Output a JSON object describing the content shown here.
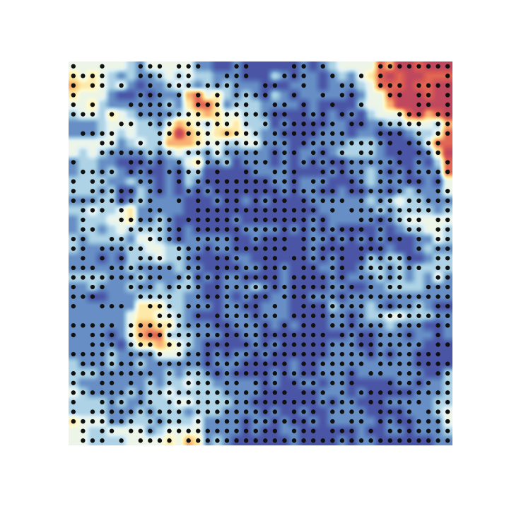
{
  "chart_data": {
    "type": "heatmap",
    "title": "",
    "xlabel": "",
    "ylabel": "",
    "grid": false,
    "axes_visible": false,
    "colormap": "RdYlBu_r",
    "colormap_stops": [
      "#4a55a6",
      "#5f86c1",
      "#9cc7df",
      "#dff1f7",
      "#fefbd2",
      "#fddb8c",
      "#f6a06a",
      "#de5d52",
      "#c0485e"
    ],
    "grid_size": [
      40,
      40
    ],
    "rows": [
      "3333332133333110010000001012333365776777",
      "4343212112323221110002101101213467677666",
      "5443231011232121211100011101112366676677",
      "4333100101115634212102101111101336777677",
      "3342111111214664122211110100002335778777",
      "2332432111123454332210000101010233367567",
      "1112333221354324342220100001100112233325",
      "1112323222475434543211000011101100012236",
      "3333312322555433223311100111122210001366",
      "3232111121232213111110101101222210000147",
      "1221100010113411201110101010011111001026",
      "1221210100102200000111100001011210101116",
      "2222112110102100000001101110001211100103",
      "2221200210101010000000101100100110121113",
      "1112201211110001001010000111111212322111",
      "2232234111110000000000000011111121222212",
      "1222334112100000010000000101111101233333",
      "1221232222101000001111010101000010122332",
      "2122221332101111100100000110101010001132",
      "2111112233221101100000000100000001001211",
      "1110102223221000011000000101000212200122",
      "1111112111121100001100100011001221212222",
      "2222111211112010110000100001011121212131",
      "1121112112122100111210100001100112222111",
      "1100111222221100101001100111011111111111",
      "1111111444221110110011100002111210112100",
      "1111113443321000111011100001101223322211",
      "1111113554421110011101010001101112111001",
      "1111013566222111001100000000010011101101",
      "1111102445432100000101000001110011111000",
      "1111211113331101011010000001111010110000",
      "2111211211111101110000010011111111110000",
      "2221111111212210100001010011101111111002",
      "2111111121223221111101001101100000110112",
      "3211112122322222111100000011101000001112",
      "2222121122233222211000000010110001111122",
      "2222111212221222111101001001111000011123",
      "4333112221222311110110100101111101001113",
      "3322333312333311110100110000001001101112",
      "3322223333435412100000010000101100000011"
    ],
    "dots": {
      "color": "#111111",
      "rows": [
        "1001000111011100011000011010000011111111",
        "1111000111011000111000111001001010000001",
        "1011010010111011110011001000110011101111",
        "1000000111010101011110010010110001101101",
        "1010001111100111011001101001001000001101",
        "1110100111111101111111101110110000111011",
        "0000011011101111101010111111011011111011",
        "0111100001101110111101111111100011101011",
        "0001100101000111111111101111111111011110",
        "0001111111101111111101110110101100101110",
        "1000001111010111101110101111111111101001",
        "0111101110111101001101110011111011111111",
        "1011000110010111111111110110011011111010",
        "1011111011001111111111111111011111101011",
        "1111111110010101110111101111101011011111",
        "0111010011000111111111111101011111111101",
        "0100011111101111110111111110001111111011",
        "0110001111110111111111111111111010011011",
        "1100110011110111110111101111111111101011",
        "1101111100011111111111101111101110001011",
        "0101010111011101110011011111101111110011",
        "1110111111101101111111101101101111111011",
        "1111111111011111111111011111101111100011",
        "1011001110111101111111111111110101100111",
        "1110000111100111101110111111111111111111",
        "1001110011101110111101001111111011111011",
        "0000000001110101111111011111111011111111",
        "1111101111111111111110101101111110111011",
        "1011101111111111111111111110111111110010",
        "0011101110111011101111111111111111111011",
        "1111101111011111111111111111111111111110",
        "0111111101111111111111101111111011111111",
        "1111111110101111111111111111110110111011",
        "1001101010101110110111011101110001111101",
        "1111111111111111111111101110101111111111",
        "1001110110111111111111111111110111111011",
        "1011111111110111111111011101111011110111",
        "1111111011110101111111111101011011111111",
        "0101101110111111111111011101110101111111",
        "0111010111101111111111111111111111111111"
      ]
    }
  }
}
